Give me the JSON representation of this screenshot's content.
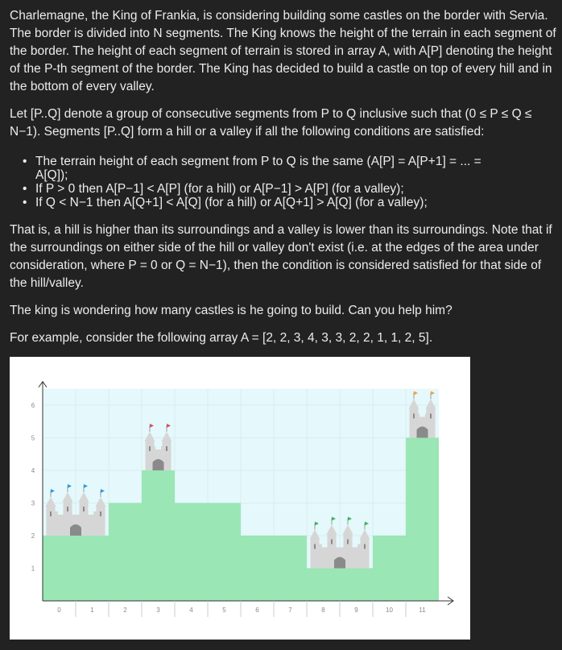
{
  "paragraphs": [
    [
      "Charlemagne, the King of Frankia, is considering building some castles on the border with Servia.",
      "The border is divided into N segments. The King knows the height of the terrain in each segment of",
      "the border. The height of each segment of terrain is stored in array A, with A[P] denoting the height",
      "of the P-th segment of the border. The King has decided to build a castle on top of every hill and in",
      "the bottom of every valley."
    ],
    [
      "Let [P..Q] denote a group of consecutive segments from P to Q inclusive such that (0 ≤ P ≤ Q ≤",
      "N−1). Segments [P..Q] form a hill or a valley if all the following conditions are satisfied:"
    ],
    [
      "That is, a hill is higher than its surroundings and a valley is lower than its surroundings. Note that if",
      "the surroundings on either side of the hill or valley don't exist (i.e. at the edges of the area under",
      "consideration, where P = 0 or Q = N−1), then the condition is considered satisfied for that side of",
      "the hill/valley."
    ],
    [
      "The king is wondering how many castles is he going to build. Can you help him?"
    ],
    [
      "For example, consider the following array A = [2, 2, 3, 4, 3, 3, 2, 2, 1, 1, 2, 5]."
    ]
  ],
  "bullets": [
    [
      "The terrain height of each segment from P to Q is the same (A[P] = A[P+1] = ... =",
      "A[Q]);"
    ],
    [
      "If P > 0 then A[P−1] < A[P] (for a hill) or A[P−1] > A[P] (for a valley);"
    ],
    [
      "If Q < N−1 then A[Q+1] < A[Q] (for a hill) or A[Q+1] > A[Q] (for a valley);"
    ]
  ],
  "bullet_symbol": "•",
  "chart_data": {
    "type": "bar",
    "categories": [
      "0",
      "1",
      "2",
      "3",
      "4",
      "5",
      "6",
      "7",
      "8",
      "9",
      "10",
      "11"
    ],
    "values": [
      2,
      2,
      3,
      4,
      3,
      3,
      2,
      2,
      1,
      1,
      2,
      5
    ],
    "y_ticks": [
      "1",
      "2",
      "3",
      "4",
      "5",
      "6"
    ],
    "ylim": [
      0,
      6.5
    ],
    "castles": [
      {
        "from": 0,
        "to": 1,
        "flag_color": "#2f9be0"
      },
      {
        "from": 3,
        "to": 3,
        "flag_color": "#e04a5f"
      },
      {
        "from": 8,
        "to": 9,
        "flag_color": "#3cb55a"
      },
      {
        "from": 11,
        "to": 11,
        "flag_color": "#f0a23a"
      }
    ],
    "colors": {
      "terrain_fill": "#9ae6b4",
      "sky_fill": "#e5f8fb",
      "grid": "#d6eef2",
      "axis": "#333333",
      "castle": "#d6d6d6",
      "castle_dark": "#b8b8b8",
      "door": "#8a8a8a"
    }
  }
}
